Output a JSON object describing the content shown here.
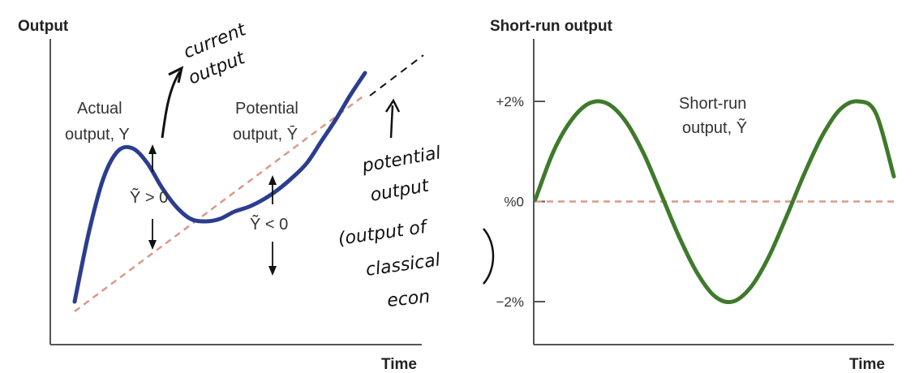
{
  "chart_data": [
    {
      "type": "line",
      "ylabel": "Output",
      "xlabel": "Time",
      "series": [
        {
          "name": "Actual output, Y",
          "color": "#2b3d8f",
          "style": "solid",
          "x": [
            0,
            0.05,
            0.1,
            0.15,
            0.2,
            0.25,
            0.3,
            0.35,
            0.4,
            0.45,
            0.5,
            0.55,
            0.6,
            0.65,
            0.7,
            0.75,
            0.8,
            0.85,
            0.9,
            0.95,
            1.0
          ],
          "y": [
            0.06,
            0.35,
            0.57,
            0.68,
            0.69,
            0.63,
            0.53,
            0.45,
            0.4,
            0.39,
            0.4,
            0.43,
            0.45,
            0.48,
            0.52,
            0.57,
            0.63,
            0.72,
            0.81,
            0.91,
            1.0
          ]
        },
        {
          "name": "Potential output, Ȳ",
          "color": "#d99a86",
          "style": "dashed",
          "x": [
            0,
            1.0
          ],
          "y": [
            0.02,
            0.91
          ]
        }
      ],
      "annotations": {
        "actual_label_line1": "Actual",
        "actual_label_line2": "output, Y",
        "potential_label_line1": "Potential",
        "potential_label_line2": "output, Ȳ",
        "gap_positive": "Ỹ > 0",
        "gap_negative": "Ỹ < 0"
      }
    },
    {
      "type": "line",
      "ylabel": "Short-run output",
      "xlabel": "Time",
      "yticks": [
        {
          "value": 2,
          "label": "+2%"
        },
        {
          "value": 0,
          "label": "%0"
        },
        {
          "value": -2,
          "label": "−2%"
        }
      ],
      "ylim": [
        -2.7,
        2.7
      ],
      "series": [
        {
          "name": "Short-run output, Ỹ",
          "color": "#3f7a2c",
          "style": "solid",
          "x": [
            0,
            0.05,
            0.1,
            0.15,
            0.2,
            0.25,
            0.3,
            0.35,
            0.4,
            0.45,
            0.5,
            0.55,
            0.6,
            0.65,
            0.7,
            0.75,
            0.8,
            0.85,
            0.9,
            0.95,
            1.0
          ],
          "y": [
            0.04,
            0.99,
            1.62,
            1.96,
            1.96,
            1.62,
            0.99,
            0.16,
            -0.69,
            -1.41,
            -1.89,
            -2.0,
            -1.72,
            -1.12,
            -0.31,
            0.55,
            1.31,
            1.84,
            2.0,
            1.76,
            0.5
          ]
        },
        {
          "name": "zero line",
          "color": "#d99a86",
          "style": "dashed",
          "x": [
            0,
            1.0
          ],
          "y": [
            0,
            0
          ]
        }
      ],
      "annotations": {
        "label_line1": "Short-run",
        "label_line2": "output, Ỹ"
      }
    }
  ],
  "handwritten": {
    "current_line1": "current",
    "current_line2": "output",
    "potential_line1": "potential",
    "potential_line2": "output",
    "classical_line1": "(output of",
    "classical_line2": "classical",
    "classical_line3": "econ"
  }
}
